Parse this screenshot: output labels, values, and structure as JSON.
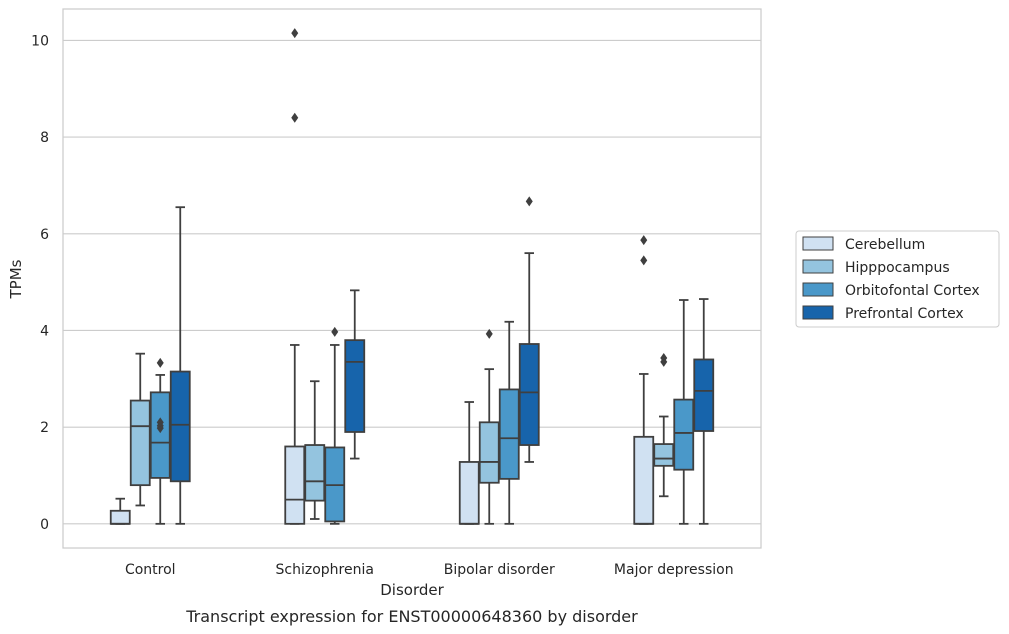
{
  "caption": "Transcript expression for ENST00000648360 by disorder",
  "chart_data": {
    "type": "box",
    "xlabel": "Disorder",
    "ylabel": "TPMs",
    "ylim": [
      -0.5,
      10.65
    ],
    "yticks": [
      0,
      2,
      4,
      6,
      8,
      10
    ],
    "grid": "horizontal",
    "legend_position": "right",
    "categories": [
      "Control",
      "Schizophrenia",
      "Bipolar disorder",
      "Major depression"
    ],
    "series": [
      {
        "name": "Cerebellum",
        "color": "#d0e1f2",
        "boxes": [
          {
            "whisker_low": 0,
            "q1": 0,
            "median": 0,
            "q3": 0.27,
            "whisker_high": 0.52,
            "outliers": []
          },
          {
            "whisker_low": 0,
            "q1": 0,
            "median": 0.5,
            "q3": 1.6,
            "whisker_high": 3.7,
            "outliers": [
              8.4,
              10.15
            ]
          },
          {
            "whisker_low": 0,
            "q1": 0,
            "median": 0,
            "q3": 1.28,
            "whisker_high": 2.52,
            "outliers": []
          },
          {
            "whisker_low": 0,
            "q1": 0,
            "median": 0,
            "q3": 1.8,
            "whisker_high": 3.1,
            "outliers": [
              5.45,
              5.87
            ]
          }
        ]
      },
      {
        "name": "Hipppocampus",
        "color": "#94c4df",
        "boxes": [
          {
            "whisker_low": 0.38,
            "q1": 0.8,
            "median": 2.02,
            "q3": 2.55,
            "whisker_high": 3.52,
            "outliers": []
          },
          {
            "whisker_low": 0.1,
            "q1": 0.48,
            "median": 0.88,
            "q3": 1.63,
            "whisker_high": 2.95,
            "outliers": []
          },
          {
            "whisker_low": 0,
            "q1": 0.85,
            "median": 1.28,
            "q3": 2.1,
            "whisker_high": 3.2,
            "outliers": [
              3.93
            ]
          },
          {
            "whisker_low": 0.57,
            "q1": 1.2,
            "median": 1.35,
            "q3": 1.65,
            "whisker_high": 2.22,
            "outliers": [
              3.35,
              3.43
            ]
          }
        ]
      },
      {
        "name": "Orbitofontal Cortex",
        "color": "#4a98c9",
        "boxes": [
          {
            "whisker_low": 0,
            "q1": 0.95,
            "median": 1.68,
            "q3": 2.72,
            "whisker_high": 3.08,
            "outliers": [
              1.98,
              2.03,
              2.1,
              3.33
            ]
          },
          {
            "whisker_low": 0,
            "q1": 0.05,
            "median": 0.8,
            "q3": 1.58,
            "whisker_high": 3.7,
            "outliers": [
              3.97
            ]
          },
          {
            "whisker_low": 0,
            "q1": 0.93,
            "median": 1.77,
            "q3": 2.78,
            "whisker_high": 4.18,
            "outliers": []
          },
          {
            "whisker_low": 0,
            "q1": 1.12,
            "median": 1.88,
            "q3": 2.57,
            "whisker_high": 4.63,
            "outliers": []
          }
        ]
      },
      {
        "name": "Prefrontal Cortex",
        "color": "#1764ab",
        "boxes": [
          {
            "whisker_low": 0,
            "q1": 0.88,
            "median": 2.05,
            "q3": 3.15,
            "whisker_high": 6.55,
            "outliers": []
          },
          {
            "whisker_low": 1.35,
            "q1": 1.9,
            "median": 3.35,
            "q3": 3.8,
            "whisker_high": 4.83,
            "outliers": []
          },
          {
            "whisker_low": 1.28,
            "q1": 1.63,
            "median": 2.72,
            "q3": 3.72,
            "whisker_high": 5.6,
            "outliers": [
              6.67
            ]
          },
          {
            "whisker_low": 0,
            "q1": 1.92,
            "median": 2.75,
            "q3": 3.4,
            "whisker_high": 4.65,
            "outliers": []
          }
        ]
      }
    ]
  }
}
